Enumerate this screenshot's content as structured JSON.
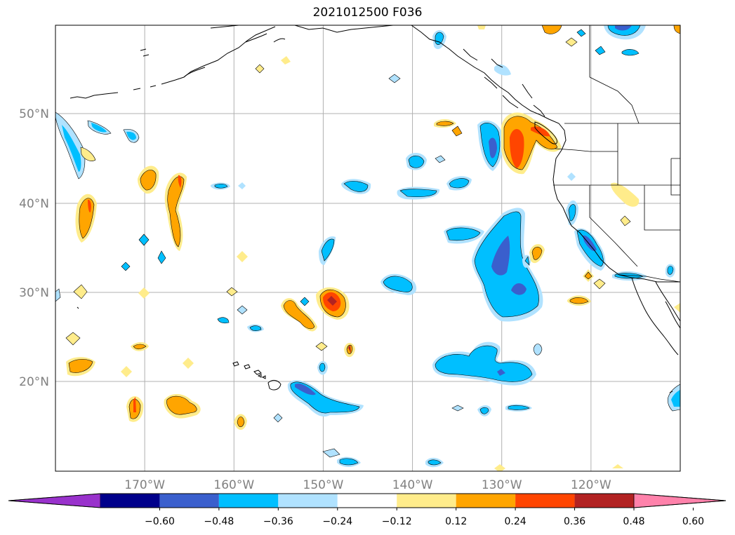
{
  "title": "2021012500 F036",
  "map": {
    "lat_labels": [
      "50°N",
      "40°N",
      "30°N",
      "20°N"
    ],
    "lon_labels": [
      "170°W",
      "160°W",
      "150°W",
      "140°W",
      "130°W",
      "120°W"
    ],
    "lat_values": [
      50,
      40,
      30,
      20
    ],
    "lon_values": [
      -170,
      -160,
      -150,
      -140,
      -130,
      -120
    ],
    "extent": {
      "lon_min": -180,
      "lon_max": -110,
      "lat_min": 10,
      "lat_max": 60
    },
    "gridlines": true,
    "line_color": "#000000",
    "grid_color": "#b0b0b0",
    "label_color": "#808080"
  },
  "colorbar": {
    "ticks": [
      "−0.60",
      "−0.48",
      "−0.36",
      "−0.24",
      "−0.12",
      "0.12",
      "0.24",
      "0.36",
      "0.48",
      "0.60"
    ],
    "bins": [
      {
        "color": "#9932cc"
      },
      {
        "color": "#00008b"
      },
      {
        "color": "#3a5fcd"
      },
      {
        "color": "#00bfff"
      },
      {
        "color": "#b0e2ff"
      },
      {
        "color": "#ffffff"
      },
      {
        "color": "#ffec8b"
      },
      {
        "color": "#ffa500"
      },
      {
        "color": "#ff4500"
      },
      {
        "color": "#b22222"
      },
      {
        "color": "#ff82ab"
      }
    ],
    "extend": "both"
  }
}
